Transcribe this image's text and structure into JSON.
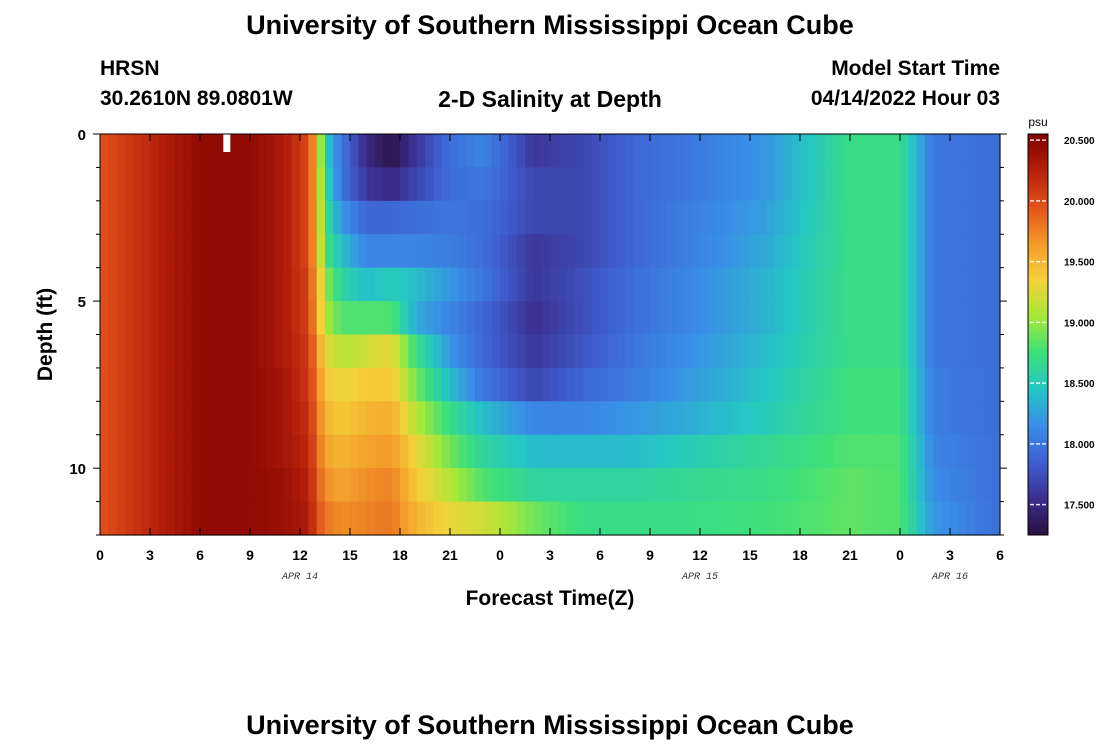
{
  "header": {
    "title": "University of Southern Mississippi Ocean Cube",
    "station": "HRSN",
    "coords": "30.2610N  89.0801W",
    "plot_title": "2-D Salinity at Depth",
    "start_label": "Model Start Time",
    "start_value": "04/14/2022 Hour 03",
    "bottom_title": "University of Southern Mississippi Ocean Cube"
  },
  "colors": {
    "scale": [
      "#2a0f3e",
      "#3b2f8f",
      "#3f5fd1",
      "#3a8de8",
      "#25c6c4",
      "#3de07a",
      "#a6e838",
      "#f5d13a",
      "#f39a2a",
      "#e0521b",
      "#b51f0b",
      "#800000"
    ]
  },
  "chart_data": {
    "type": "heatmap",
    "title": "2-D Salinity at Depth",
    "xlabel": "Forecast Time(Z)",
    "ylabel": "Depth (ft)",
    "x_tick_labels": [
      "0",
      "3",
      "6",
      "9",
      "12",
      "15",
      "18",
      "21",
      "0",
      "3",
      "6",
      "9",
      "12",
      "15",
      "18",
      "21",
      "0",
      "3",
      "6"
    ],
    "date_labels": [
      {
        "text": "APR 14",
        "hour": 12
      },
      {
        "text": "APR 15",
        "hour": 36
      },
      {
        "text": "APR 16",
        "hour": 51
      }
    ],
    "xlim_hours": [
      0,
      54
    ],
    "y_ticks": [
      0,
      5,
      10
    ],
    "ylim_ft": [
      0,
      12
    ],
    "colorbar": {
      "unit": "psu",
      "ticks": [
        "20.500",
        "20.000",
        "19.500",
        "19.000",
        "18.500",
        "18.000",
        "17.500"
      ],
      "range": [
        17.25,
        20.55
      ]
    },
    "depth_rows_ft": [
      0.5,
      1.5,
      2.5,
      3.5,
      4.5,
      5.5,
      6.5,
      7.5,
      8.5,
      9.5,
      10.5,
      11.5
    ],
    "time_hours": [
      0,
      6,
      9,
      11,
      12.5,
      13,
      13.5,
      14.5,
      16,
      17.5,
      19,
      21,
      23,
      26,
      29,
      32,
      35,
      40,
      45,
      48,
      50,
      54
    ],
    "salinity_psu": [
      [
        19.95,
        20.45,
        20.45,
        20.3,
        20.0,
        19.5,
        18.5,
        18.0,
        17.5,
        17.3,
        17.6,
        17.95,
        18.1,
        17.6,
        17.7,
        17.9,
        18.0,
        18.2,
        18.7,
        18.7,
        18.0,
        17.95
      ],
      [
        19.95,
        20.45,
        20.45,
        20.3,
        20.0,
        19.5,
        18.6,
        18.0,
        17.6,
        17.5,
        17.7,
        17.95,
        18.0,
        17.7,
        17.7,
        17.9,
        18.0,
        18.2,
        18.7,
        18.7,
        18.0,
        17.95
      ],
      [
        19.95,
        20.45,
        20.45,
        20.3,
        20.0,
        19.5,
        18.7,
        18.2,
        17.9,
        17.9,
        17.95,
        18.0,
        17.95,
        17.7,
        17.7,
        17.9,
        18.05,
        18.25,
        18.7,
        18.7,
        18.0,
        17.95
      ],
      [
        19.95,
        20.45,
        20.45,
        20.3,
        20.0,
        19.5,
        18.8,
        18.4,
        18.1,
        18.1,
        18.1,
        18.05,
        17.95,
        17.6,
        17.7,
        17.9,
        18.05,
        18.3,
        18.7,
        18.7,
        18.0,
        17.95
      ],
      [
        19.95,
        20.45,
        20.45,
        20.3,
        20.05,
        19.55,
        19.0,
        18.6,
        18.4,
        18.5,
        18.4,
        18.2,
        18.0,
        17.6,
        17.75,
        17.95,
        18.1,
        18.35,
        18.7,
        18.7,
        18.0,
        17.95
      ],
      [
        19.95,
        20.45,
        20.45,
        20.3,
        20.05,
        19.6,
        19.1,
        18.8,
        18.8,
        18.8,
        18.3,
        18.1,
        17.9,
        17.55,
        17.75,
        17.95,
        18.1,
        18.35,
        18.7,
        18.7,
        18.0,
        17.95
      ],
      [
        19.95,
        20.45,
        20.45,
        20.3,
        20.1,
        19.7,
        19.3,
        19.1,
        19.2,
        19.3,
        18.7,
        18.2,
        17.9,
        17.6,
        17.8,
        18.0,
        18.15,
        18.4,
        18.7,
        18.7,
        18.0,
        17.95
      ],
      [
        19.95,
        20.45,
        20.45,
        20.35,
        20.1,
        19.8,
        19.4,
        19.3,
        19.4,
        19.4,
        18.9,
        18.4,
        18.0,
        17.7,
        17.9,
        18.05,
        18.2,
        18.45,
        18.75,
        18.75,
        18.05,
        17.95
      ],
      [
        19.95,
        20.45,
        20.45,
        20.35,
        20.15,
        19.85,
        19.5,
        19.4,
        19.5,
        19.55,
        19.1,
        18.7,
        18.4,
        18.1,
        18.1,
        18.2,
        18.3,
        18.5,
        18.75,
        18.75,
        18.05,
        17.95
      ],
      [
        19.95,
        20.45,
        20.45,
        20.35,
        20.2,
        19.9,
        19.6,
        19.5,
        19.6,
        19.65,
        19.3,
        18.9,
        18.6,
        18.4,
        18.4,
        18.4,
        18.5,
        18.65,
        18.8,
        18.8,
        18.1,
        17.95
      ],
      [
        19.95,
        20.45,
        20.45,
        20.4,
        20.25,
        19.95,
        19.7,
        19.6,
        19.7,
        19.75,
        19.4,
        19.1,
        18.8,
        18.6,
        18.6,
        18.6,
        18.65,
        18.7,
        18.85,
        18.8,
        18.15,
        17.95
      ],
      [
        19.95,
        20.45,
        20.45,
        20.4,
        20.3,
        20.0,
        19.8,
        19.7,
        19.75,
        19.8,
        19.5,
        19.3,
        19.2,
        18.9,
        18.7,
        18.7,
        18.7,
        18.75,
        18.85,
        18.8,
        18.2,
        17.95
      ]
    ]
  }
}
